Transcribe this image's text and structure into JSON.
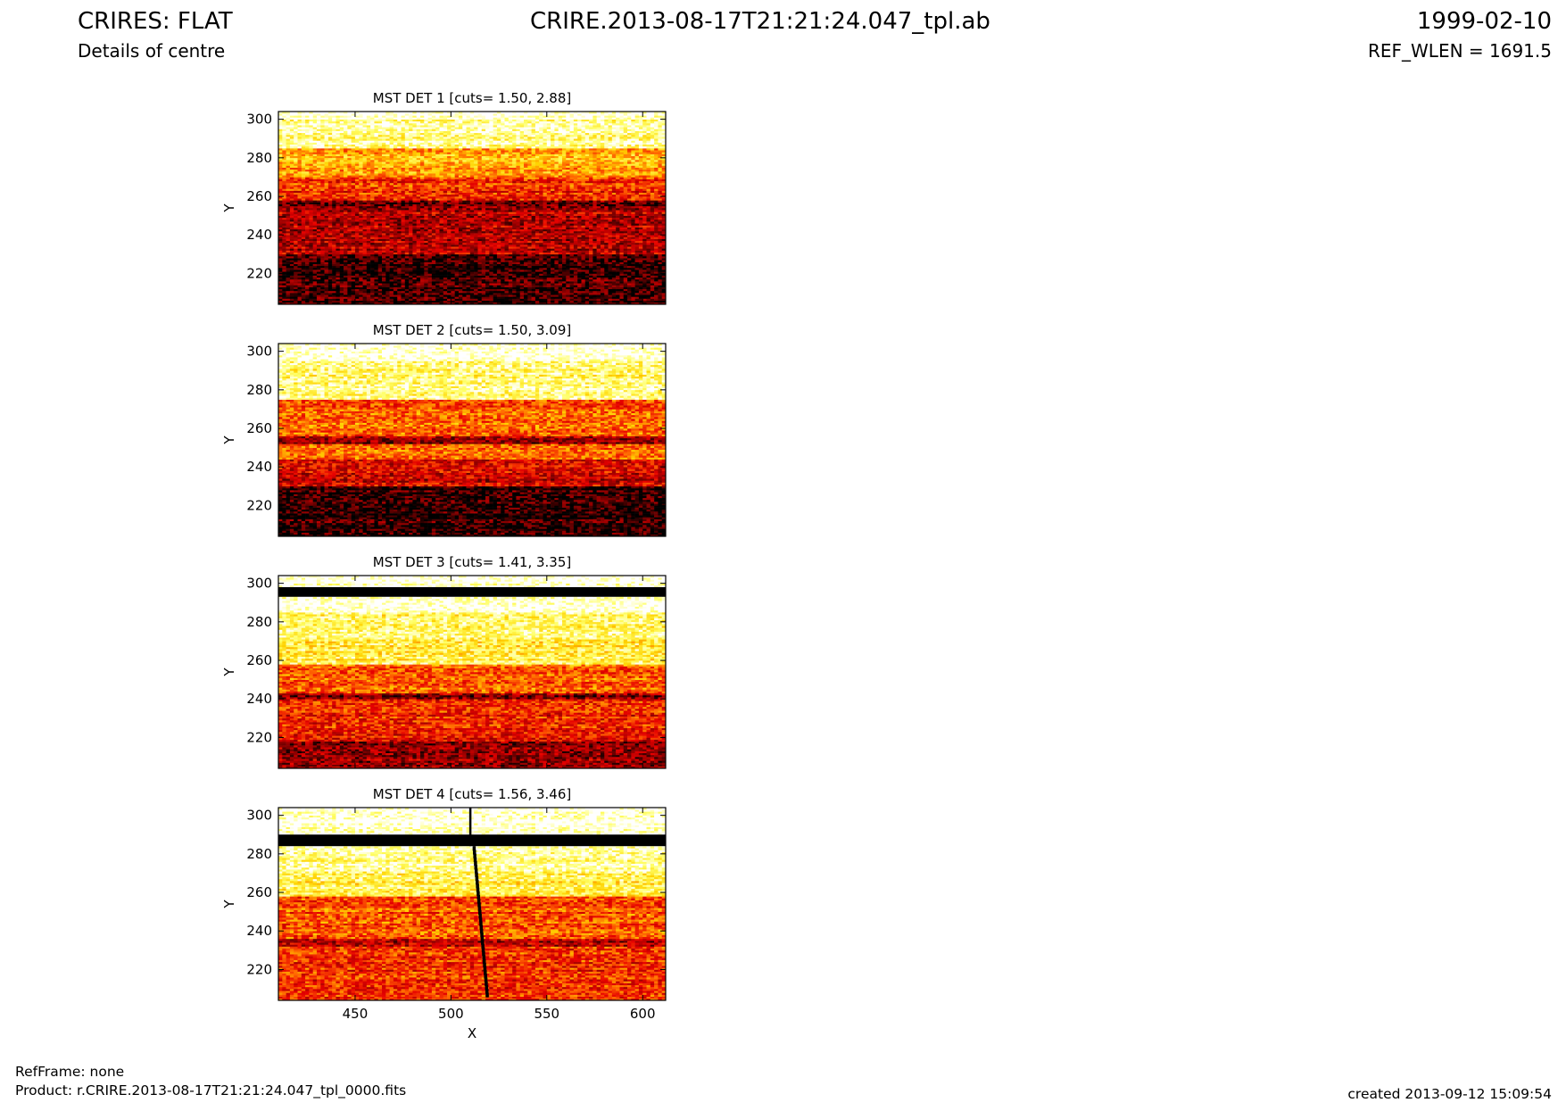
{
  "header": {
    "instrument_title": "CRIRES: FLAT",
    "subtitle": "Details of centre",
    "file_title": "CRIRE.2013-08-17T21:21:24.047_tpl.ab",
    "date": "1999-02-10",
    "ref_wlen": "REF_WLEN = 1691.5"
  },
  "footer": {
    "ref_frame": "RefFrame: none",
    "product": "Product: r.CRIRE.2013-08-17T21:21:24.047_tpl_0000.fits",
    "created": "created 2013-09-12 15:09:54"
  },
  "colors": {
    "colormap": [
      "#000000",
      "#8b0000",
      "#e60000",
      "#ff6400",
      "#ffd200",
      "#ffff66",
      "#ffffff"
    ],
    "masked": "#000000"
  },
  "chart_data": [
    {
      "type": "heatmap",
      "title": "MST DET 1 [cuts= 1.50, 2.88]",
      "ylabel": "Y",
      "xlim": [
        410,
        612
      ],
      "ylim": [
        204,
        304
      ],
      "yticks": [
        220,
        240,
        260,
        280,
        300
      ],
      "cuts": [
        1.5,
        2.88
      ],
      "bands": [
        {
          "y": [
            204,
            230
          ],
          "level": 0.08
        },
        {
          "y": [
            230,
            255
          ],
          "level": 0.25
        },
        {
          "y": [
            255,
            258
          ],
          "level": 0.12
        },
        {
          "y": [
            258,
            270
          ],
          "level": 0.42
        },
        {
          "y": [
            270,
            285
          ],
          "level": 0.62
        },
        {
          "y": [
            285,
            300
          ],
          "level": 0.88
        },
        {
          "y": [
            300,
            304
          ],
          "level": 1.0
        }
      ],
      "masked_rows": [],
      "masked_columns": []
    },
    {
      "type": "heatmap",
      "title": "MST DET 2 [cuts= 1.50, 3.09]",
      "ylabel": "Y",
      "xlim": [
        410,
        612
      ],
      "ylim": [
        204,
        304
      ],
      "yticks": [
        220,
        240,
        260,
        280,
        300
      ],
      "cuts": [
        1.5,
        3.09
      ],
      "bands": [
        {
          "y": [
            204,
            230
          ],
          "level": 0.05
        },
        {
          "y": [
            230,
            244
          ],
          "level": 0.3
        },
        {
          "y": [
            244,
            252
          ],
          "level": 0.52
        },
        {
          "y": [
            252,
            256
          ],
          "level": 0.18
        },
        {
          "y": [
            256,
            275
          ],
          "level": 0.48
        },
        {
          "y": [
            275,
            295
          ],
          "level": 0.86
        },
        {
          "y": [
            295,
            304
          ],
          "level": 1.0
        }
      ],
      "masked_rows": [],
      "masked_columns": []
    },
    {
      "type": "heatmap",
      "title": "MST DET 3 [cuts= 1.41, 3.35]",
      "ylabel": "Y",
      "xlim": [
        410,
        612
      ],
      "ylim": [
        204,
        304
      ],
      "yticks": [
        220,
        240,
        260,
        280,
        300
      ],
      "cuts": [
        1.41,
        3.35
      ],
      "bands": [
        {
          "y": [
            204,
            218
          ],
          "level": 0.22
        },
        {
          "y": [
            218,
            240
          ],
          "level": 0.38
        },
        {
          "y": [
            240,
            243
          ],
          "level": 0.2
        },
        {
          "y": [
            243,
            258
          ],
          "level": 0.5
        },
        {
          "y": [
            258,
            270
          ],
          "level": 0.78
        },
        {
          "y": [
            270,
            285
          ],
          "level": 0.82
        },
        {
          "y": [
            285,
            293
          ],
          "level": 1.0
        },
        {
          "y": [
            298,
            304
          ],
          "level": 1.0
        }
      ],
      "masked_rows": [
        [
          293,
          298
        ]
      ],
      "masked_columns": []
    },
    {
      "type": "heatmap",
      "title": "MST DET 4 [cuts= 1.56, 3.46]",
      "xlabel": "X",
      "ylabel": "Y",
      "xlim": [
        410,
        612
      ],
      "ylim": [
        204,
        304
      ],
      "xticks": [
        450,
        500,
        550,
        600
      ],
      "yticks": [
        220,
        240,
        260,
        280,
        300
      ],
      "cuts": [
        1.56,
        3.46
      ],
      "bands": [
        {
          "y": [
            204,
            232
          ],
          "level": 0.42
        },
        {
          "y": [
            232,
            236
          ],
          "level": 0.25
        },
        {
          "y": [
            236,
            258
          ],
          "level": 0.48
        },
        {
          "y": [
            258,
            270
          ],
          "level": 0.8
        },
        {
          "y": [
            270,
            284
          ],
          "level": 0.88
        },
        {
          "y": [
            284,
            290
          ],
          "level": 1.0
        },
        {
          "y": [
            290,
            304
          ],
          "level": 1.0
        }
      ],
      "masked_rows": [
        [
          284,
          290
        ]
      ],
      "masked_columns": [
        {
          "x": 510,
          "y": [
            284,
            304
          ]
        },
        {
          "x_start": 512,
          "x_end": 519,
          "y": [
            206,
            284
          ]
        }
      ]
    }
  ]
}
